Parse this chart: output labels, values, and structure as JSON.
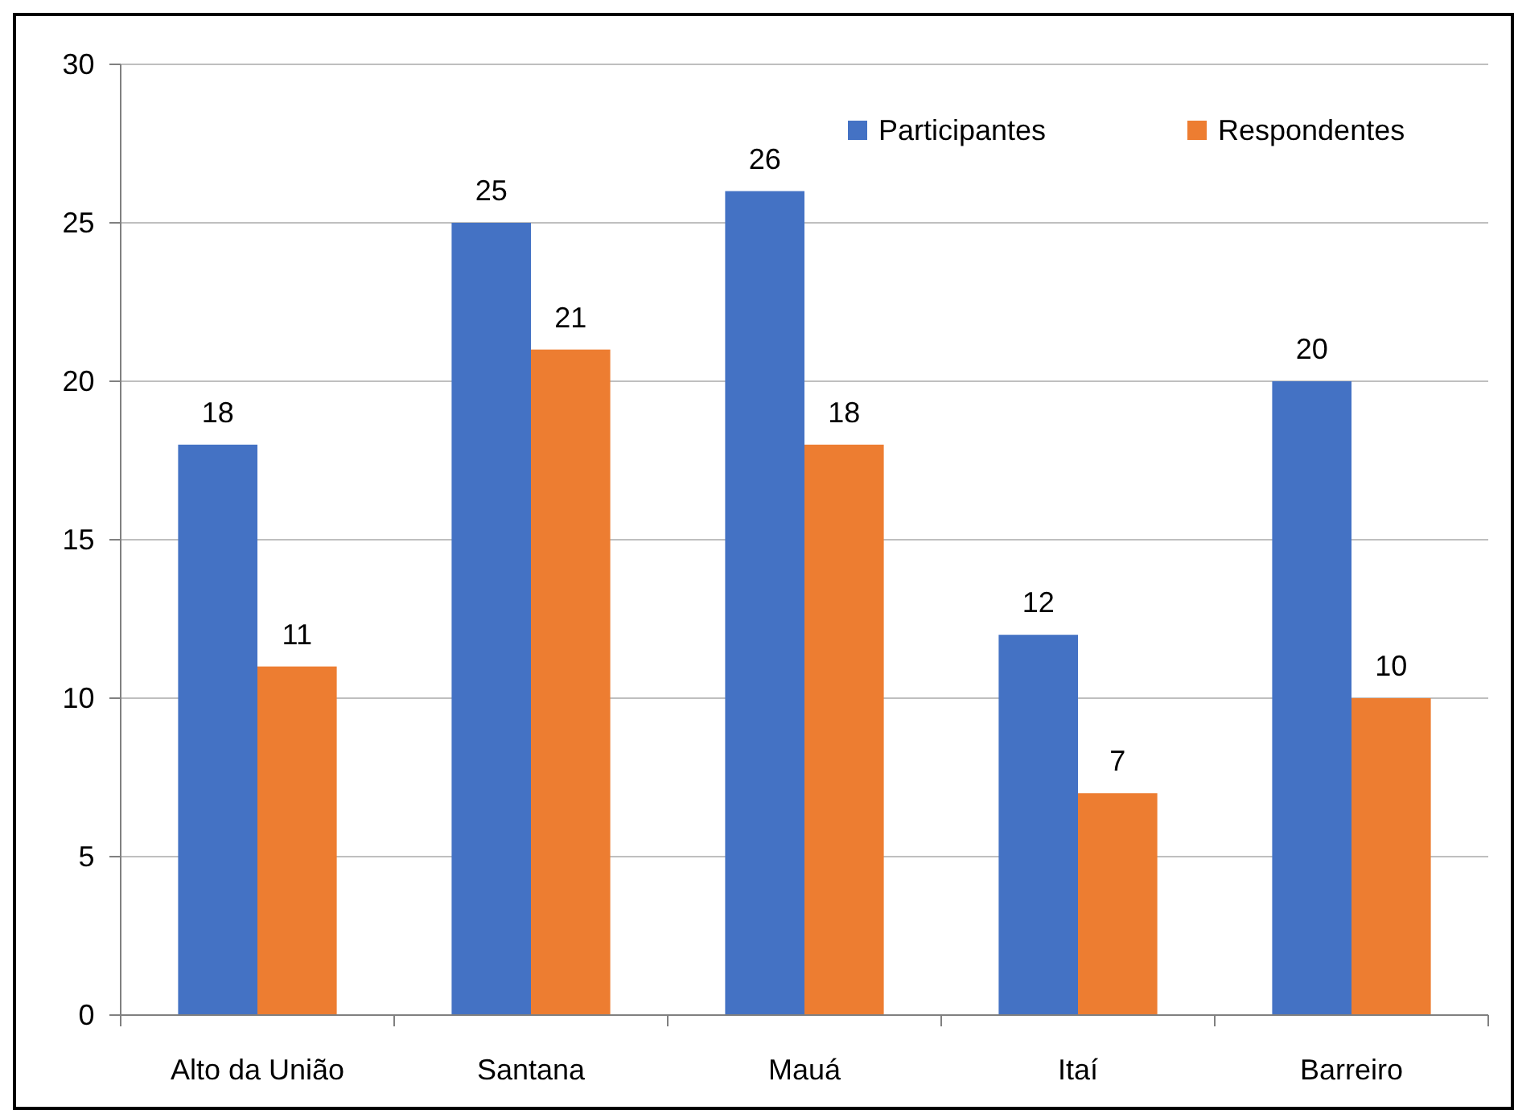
{
  "chart_data": {
    "type": "bar",
    "categories": [
      "Alto da União",
      "Santana",
      "Mauá",
      "Itaí",
      "Barreiro"
    ],
    "series": [
      {
        "name": "Participantes",
        "color": "#4472c4",
        "values": [
          18,
          25,
          26,
          12,
          20
        ]
      },
      {
        "name": "Respondentes",
        "color": "#ed7d31",
        "values": [
          11,
          21,
          18,
          7,
          10
        ]
      }
    ],
    "ylim": [
      0,
      30
    ],
    "yticks": [
      0,
      5,
      10,
      15,
      20,
      25,
      30
    ],
    "grid": "y",
    "legend": "top right",
    "data_labels": true
  }
}
